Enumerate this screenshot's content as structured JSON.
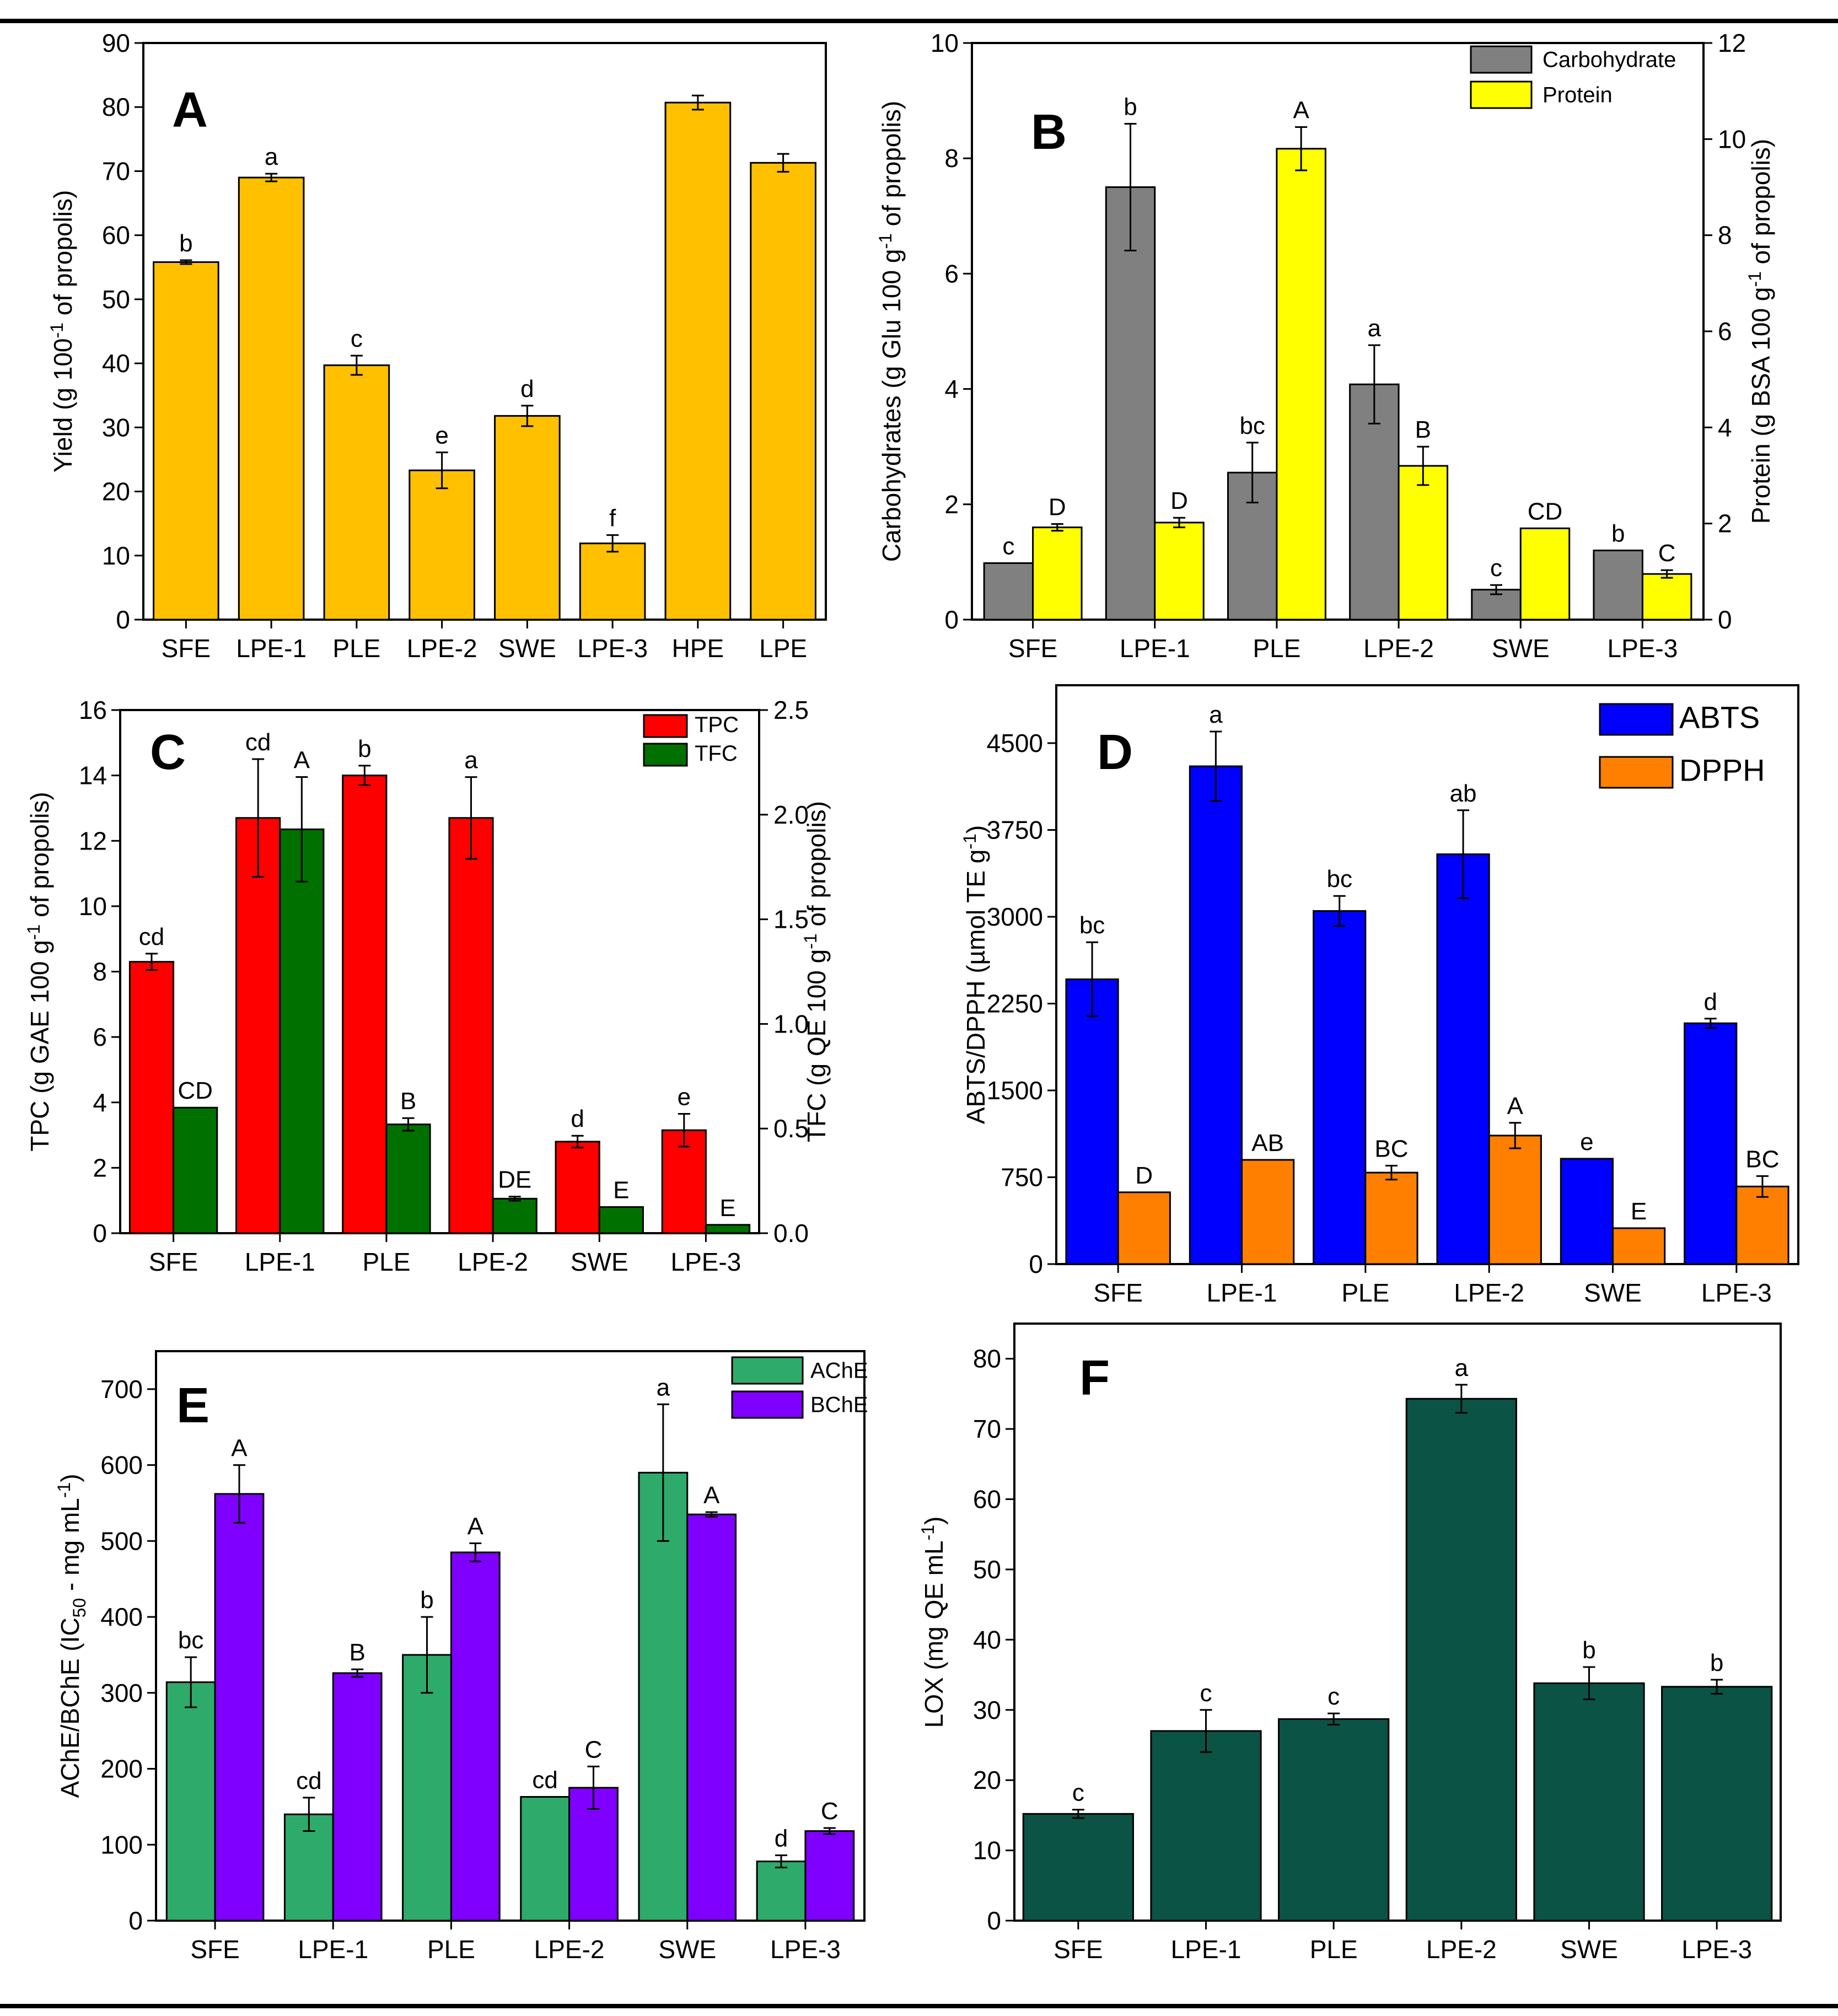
{
  "figure": {
    "colors": {
      "frame": "#000000",
      "bar_edge": "#000000"
    },
    "panels": [
      {
        "letter": "A",
        "chart_data": {
          "type": "bar",
          "categories": [
            "SFE",
            "LPE-1",
            "PLE",
            "LPE-2",
            "SWE",
            "LPE-3",
            "HPE",
            "LPE"
          ],
          "series": [
            {
              "name": "Yield",
              "color": "#FFC000",
              "values": [
                55.8,
                69.0,
                39.7,
                23.3,
                31.8,
                11.9,
                80.7,
                71.3
              ],
              "errors": [
                0.3,
                0.6,
                1.5,
                2.8,
                1.6,
                1.3,
                1.1,
                1.4
              ],
              "labels": [
                "b",
                "a",
                "c",
                "e",
                "d",
                "f",
                "",
                ""
              ]
            }
          ],
          "ylabel_parts": [
            "Yield (g 100",
            "-1",
            " of propolis)"
          ],
          "ylim": [
            0,
            90
          ],
          "yticks": [
            0,
            10,
            20,
            30,
            40,
            50,
            60,
            70,
            80,
            90
          ],
          "legend": []
        }
      },
      {
        "letter": "B",
        "chart_data": {
          "type": "bar",
          "categories": [
            "SFE",
            "LPE-1",
            "PLE",
            "LPE-2",
            "SWE",
            "LPE-3"
          ],
          "series": [
            {
              "name": "Carbohydrate",
              "color": "#808080",
              "axis": "left",
              "values": [
                0.98,
                7.5,
                2.55,
                4.08,
                0.52,
                1.2
              ],
              "errors": [
                0.0,
                1.1,
                0.52,
                0.68,
                0.08,
                0.0
              ],
              "labels": [
                "c",
                "b",
                "bc",
                "a",
                "c",
                "b"
              ]
            },
            {
              "name": "Protein",
              "color": "#FFFF00",
              "axis": "right",
              "values": [
                1.92,
                2.02,
                9.8,
                3.2,
                1.9,
                0.95
              ],
              "errors": [
                0.07,
                0.1,
                0.45,
                0.4,
                0.0,
                0.08
              ],
              "labels": [
                "D",
                "D",
                "A",
                "B",
                "CD",
                "C"
              ]
            }
          ],
          "ylabel_parts": [
            "Carbohydrates (g Glu 100 g",
            "-1",
            " of propolis)"
          ],
          "ylim": [
            0,
            10
          ],
          "yticks": [
            0,
            2,
            4,
            6,
            8,
            10
          ],
          "y2label_parts": [
            "Protein (g BSA 100 g",
            "-1",
            " of propolis)"
          ],
          "y2lim": [
            0,
            12
          ],
          "y2ticks": [
            0,
            2,
            4,
            6,
            8,
            10,
            12
          ],
          "legend": [
            "Carbohydrate",
            "Protein"
          ]
        }
      },
      {
        "letter": "C",
        "chart_data": {
          "type": "bar",
          "categories": [
            "SFE",
            "LPE-1",
            "PLE",
            "LPE-2",
            "SWE",
            "LPE-3"
          ],
          "series": [
            {
              "name": "TPC",
              "color": "#FF0000",
              "axis": "left",
              "values": [
                8.3,
                12.7,
                14.0,
                12.7,
                2.8,
                3.15
              ],
              "errors": [
                0.25,
                1.8,
                0.3,
                1.25,
                0.18,
                0.5
              ],
              "labels": [
                "cd",
                "cd",
                "b",
                "a",
                "d",
                "e"
              ]
            },
            {
              "name": "TFC",
              "color": "#007000",
              "axis": "right",
              "values": [
                0.6,
                1.93,
                0.52,
                0.165,
                0.125,
                0.04
              ],
              "errors": [
                0.0,
                0.25,
                0.03,
                0.01,
                0.0,
                0.0
              ],
              "labels": [
                "CD",
                "A",
                "B",
                "DE",
                "E",
                "E"
              ]
            }
          ],
          "ylabel_parts": [
            "TPC (g GAE 100 g",
            "-1",
            " of propolis)"
          ],
          "ylim": [
            0,
            16
          ],
          "yticks": [
            0,
            2,
            4,
            6,
            8,
            10,
            12,
            14,
            16
          ],
          "y2label_parts": [
            "TFC (g QE 100 g",
            "-1",
            " of propolis)"
          ],
          "y2lim": [
            0,
            2.5
          ],
          "y2ticks": [
            "0.0",
            "0.5",
            "1.0",
            "1.5",
            "2.0",
            "2.5"
          ],
          "legend": [
            "TPC",
            "TFC"
          ]
        }
      },
      {
        "letter": "D",
        "chart_data": {
          "type": "bar",
          "categories": [
            "SFE",
            "LPE-1",
            "PLE",
            "LPE-2",
            "SWE",
            "LPE-3"
          ],
          "series": [
            {
              "name": "ABTS",
              "color": "#0000FF",
              "values": [
                2460,
                4300,
                3050,
                3540,
                910,
                2080
              ],
              "errors": [
                320,
                300,
                130,
                380,
                0,
                40
              ],
              "labels": [
                "bc",
                "a",
                "bc",
                "ab",
                "e",
                "d"
              ]
            },
            {
              "name": "DPPH",
              "color": "#FF8000",
              "values": [
                620,
                900,
                790,
                1110,
                310,
                670
              ],
              "errors": [
                0,
                0,
                60,
                110,
                0,
                90
              ],
              "labels": [
                "D",
                "AB",
                "BC",
                "A",
                "E",
                "BC"
              ]
            }
          ],
          "ylabel_parts": [
            "ABTS/DPPH (µmol TE g",
            "-1",
            ")"
          ],
          "ylim": [
            0,
            5000
          ],
          "yticks": [
            0,
            750,
            1500,
            2250,
            3000,
            3750,
            4500
          ],
          "legend": [
            "ABTS",
            "DPPH"
          ]
        }
      },
      {
        "letter": "E",
        "chart_data": {
          "type": "bar",
          "categories": [
            "SFE",
            "LPE-1",
            "PLE",
            "LPE-2",
            "SWE",
            "LPE-3"
          ],
          "series": [
            {
              "name": "AChE",
              "color": "#2EAA6A",
              "values": [
                314,
                140,
                350,
                163,
                590,
                78
              ],
              "errors": [
                33,
                22,
                50,
                0,
                90,
                8
              ],
              "labels": [
                "bc",
                "cd",
                "b",
                "cd",
                "a",
                "d"
              ]
            },
            {
              "name": "BChE",
              "color": "#8000FF",
              "values": [
                562,
                326,
                485,
                175,
                535,
                118
              ],
              "errors": [
                38,
                5,
                12,
                28,
                3,
                4
              ],
              "labels": [
                "A",
                "B",
                "A",
                "C",
                "A",
                "C"
              ]
            }
          ],
          "ylabel_parts": [
            "AChE/BChE (IC",
            "50",
            " - mg mL",
            "-1",
            ")"
          ],
          "ylim": [
            0,
            750
          ],
          "yticks": [
            0,
            100,
            200,
            300,
            400,
            500,
            600,
            700
          ],
          "legend": [
            "AChE",
            "BChE"
          ]
        }
      },
      {
        "letter": "F",
        "chart_data": {
          "type": "bar",
          "categories": [
            "SFE",
            "LPE-1",
            "PLE",
            "LPE-2",
            "SWE",
            "LPE-3"
          ],
          "series": [
            {
              "name": "LOX",
              "color": "#0B5345",
              "values": [
                15.2,
                27.0,
                28.7,
                74.3,
                33.8,
                33.3
              ],
              "errors": [
                0.6,
                3.0,
                0.8,
                2.0,
                2.3,
                1.0
              ],
              "labels": [
                "c",
                "c",
                "c",
                "a",
                "b",
                "b"
              ]
            }
          ],
          "ylabel_parts": [
            "LOX (mg QE mL",
            "-1",
            ")"
          ],
          "ylim": [
            0,
            85
          ],
          "yticks": [
            0,
            10,
            20,
            30,
            40,
            50,
            60,
            70,
            80
          ],
          "legend": []
        }
      }
    ]
  }
}
